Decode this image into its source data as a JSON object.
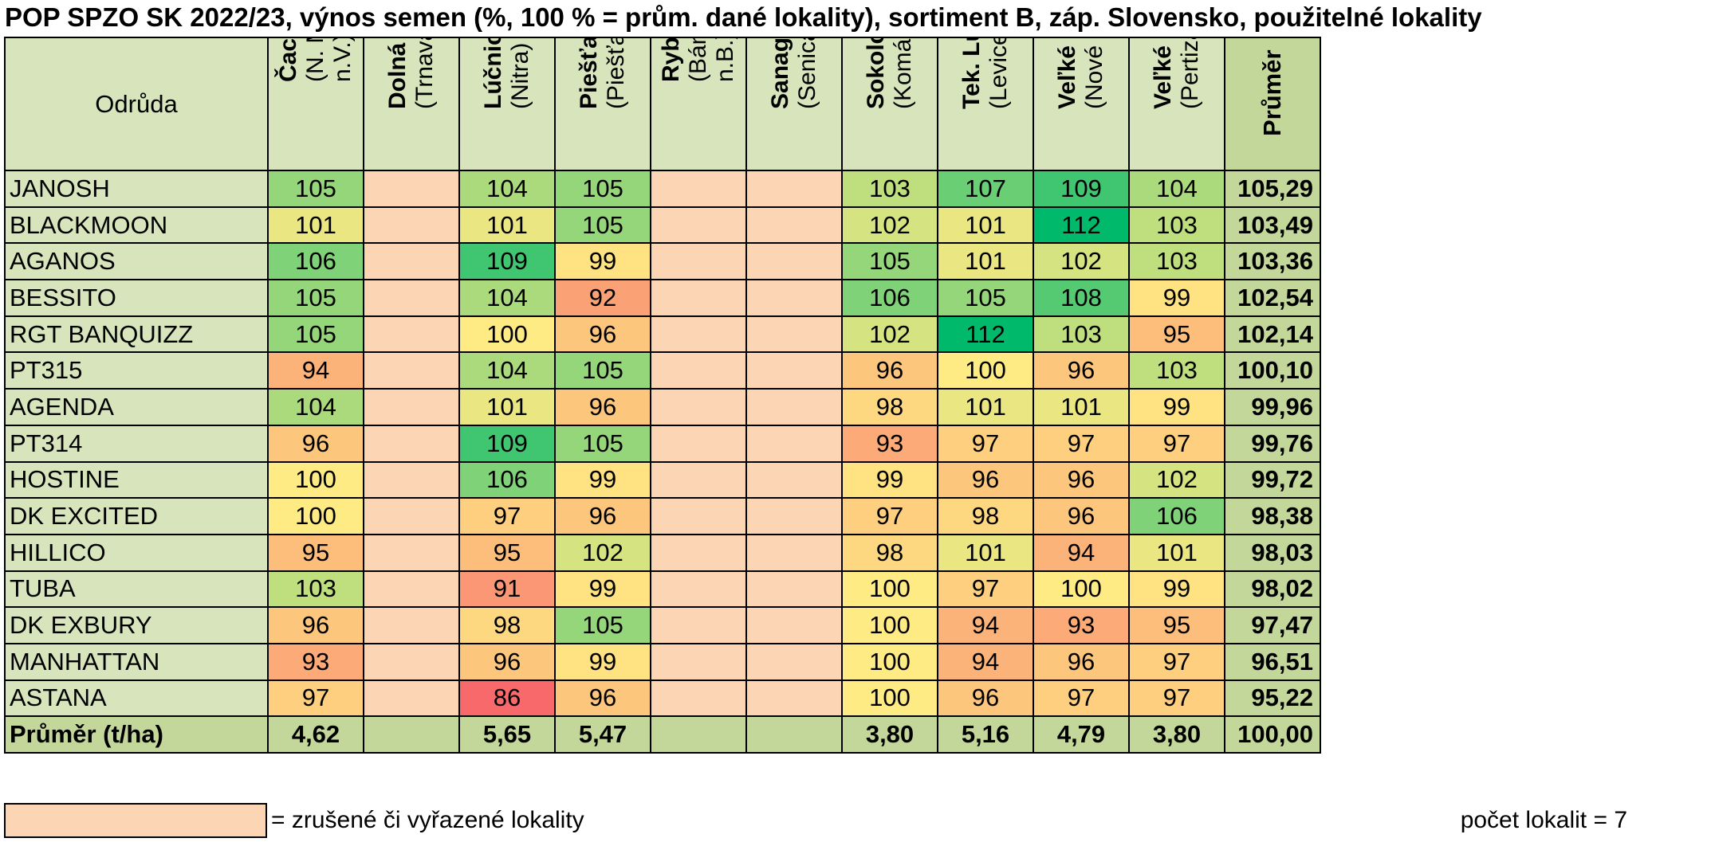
{
  "title": "POP SPZO SK 2022/23, výnos semen (%, 100 % = prům. dané lokality), sortiment B, záp. Slovensko, použitelné lokality",
  "header": {
    "variety_label": "Odrůda",
    "average_label": "Průměr"
  },
  "footer": {
    "label": "Průměr (t/ha)",
    "legend_text": "= zrušené či vyřazené lokality",
    "count_label": "počet lokalit =",
    "count_value": "7"
  },
  "colors": {
    "header_bg": "#d8e4bc",
    "average_bg": "#c4d79b",
    "cancelled_bg": "#fcd5b4",
    "scale_low": "#f8696b",
    "scale_mid": "#ffeb84",
    "scale_high": "#00b96b"
  },
  "chart_data": {
    "type": "table",
    "title": "POP SPZO SK 2022/23, výnos semen (%, 100 % = prům. dané lokality), sortiment B, záp. Slovensko, použitelné lokality",
    "locations": [
      {
        "name": "Čachtice",
        "sub": [
          "(N. Mesto",
          "n.V.)"
        ],
        "cancelled": false,
        "avg_tha": "4,62"
      },
      {
        "name": "Dolná Krúpa",
        "sub": [
          "(Trnava)"
        ],
        "cancelled": true,
        "avg_tha": ""
      },
      {
        "name": "Lúčnica n. Ž.",
        "sub": [
          "(Nitra)"
        ],
        "cancelled": false,
        "avg_tha": "5,65"
      },
      {
        "name": "Piešťany",
        "sub": [
          "(Piešťany)"
        ],
        "cancelled": false,
        "avg_tha": "5,47"
      },
      {
        "name": "Rybany",
        "sub": [
          "(Bánovce",
          "n.B.)"
        ],
        "cancelled": true,
        "avg_tha": ""
      },
      {
        "name": "Sanagro",
        "sub": [
          "(Senica)"
        ],
        "cancelled": true,
        "avg_tha": ""
      },
      {
        "name": "Sokolce",
        "sub": [
          "(Komárno)"
        ],
        "cancelled": false,
        "avg_tha": "3,80"
      },
      {
        "name": "Tek. Lužany",
        "sub": [
          "(Levice)"
        ],
        "cancelled": false,
        "avg_tha": "5,16"
      },
      {
        "name": "Veľké Lovce",
        "sub": [
          "(Nové Zámky)"
        ],
        "cancelled": false,
        "avg_tha": "4,79"
      },
      {
        "name": "Veľké Uherce",
        "sub": [
          "(Pertizánske)"
        ],
        "cancelled": false,
        "avg_tha": "3,80"
      }
    ],
    "overall_avg_tha": "100,00",
    "rows": [
      {
        "variety": "JANOSH",
        "values": [
          105,
          null,
          104,
          105,
          null,
          null,
          103,
          107,
          109,
          104
        ],
        "avg": "105,29"
      },
      {
        "variety": "BLACKMOON",
        "values": [
          101,
          null,
          101,
          105,
          null,
          null,
          102,
          101,
          112,
          103
        ],
        "avg": "103,49"
      },
      {
        "variety": "AGANOS",
        "values": [
          106,
          null,
          109,
          99,
          null,
          null,
          105,
          101,
          102,
          103
        ],
        "avg": "103,36"
      },
      {
        "variety": "BESSITO",
        "values": [
          105,
          null,
          104,
          92,
          null,
          null,
          106,
          105,
          108,
          99
        ],
        "avg": "102,54"
      },
      {
        "variety": "RGT BANQUIZZ",
        "values": [
          105,
          null,
          100,
          96,
          null,
          null,
          102,
          112,
          103,
          95
        ],
        "avg": "102,14"
      },
      {
        "variety": "PT315",
        "values": [
          94,
          null,
          104,
          105,
          null,
          null,
          96,
          100,
          96,
          103
        ],
        "avg": "100,10"
      },
      {
        "variety": "AGENDA",
        "values": [
          104,
          null,
          101,
          96,
          null,
          null,
          98,
          101,
          101,
          99
        ],
        "avg": "99,96"
      },
      {
        "variety": "PT314",
        "values": [
          96,
          null,
          109,
          105,
          null,
          null,
          93,
          97,
          97,
          97
        ],
        "avg": "99,76"
      },
      {
        "variety": "HOSTINE",
        "values": [
          100,
          null,
          106,
          99,
          null,
          null,
          99,
          96,
          96,
          102
        ],
        "avg": "99,72"
      },
      {
        "variety": "DK EXCITED",
        "values": [
          100,
          null,
          97,
          96,
          null,
          null,
          97,
          98,
          96,
          106
        ],
        "avg": "98,38"
      },
      {
        "variety": "HILLICO",
        "values": [
          95,
          null,
          95,
          102,
          null,
          null,
          98,
          101,
          94,
          101
        ],
        "avg": "98,03"
      },
      {
        "variety": "TUBA",
        "values": [
          103,
          null,
          91,
          99,
          null,
          null,
          100,
          97,
          100,
          99
        ],
        "avg": "98,02"
      },
      {
        "variety": "DK EXBURY",
        "values": [
          96,
          null,
          98,
          105,
          null,
          null,
          100,
          94,
          93,
          95
        ],
        "avg": "97,47"
      },
      {
        "variety": "MANHATTAN",
        "values": [
          93,
          null,
          96,
          99,
          null,
          null,
          100,
          94,
          96,
          97
        ],
        "avg": "96,51"
      },
      {
        "variety": "ASTANA",
        "values": [
          97,
          null,
          86,
          96,
          null,
          null,
          100,
          96,
          97,
          97
        ],
        "avg": "95,22"
      }
    ]
  }
}
